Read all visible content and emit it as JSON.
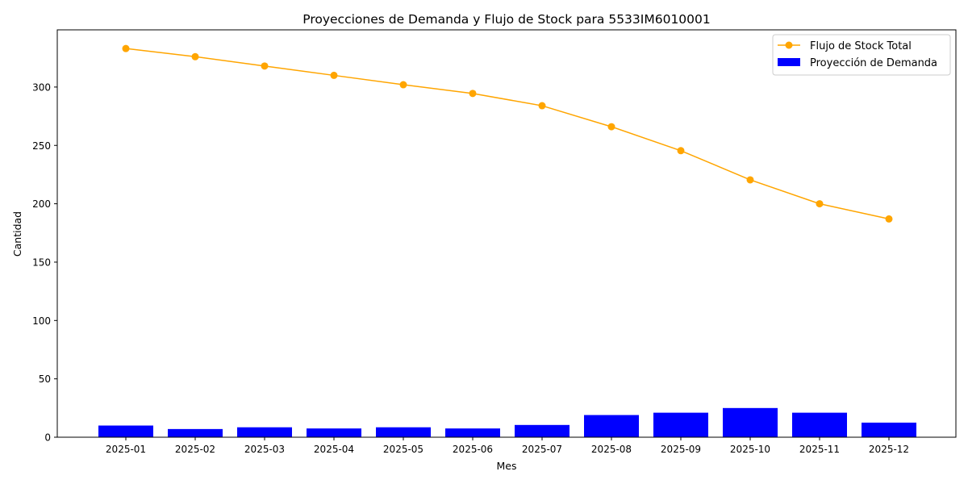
{
  "chart_data": {
    "type": "bar+line",
    "title": "Proyecciones de Demanda y Flujo de Stock para 5533IM6010001",
    "xlabel": "Mes",
    "ylabel": "Cantidad",
    "categories": [
      "2025-01",
      "2025-02",
      "2025-03",
      "2025-04",
      "2025-05",
      "2025-06",
      "2025-07",
      "2025-08",
      "2025-09",
      "2025-10",
      "2025-11",
      "2025-12"
    ],
    "ylim": [
      0,
      349
    ],
    "yticks": [
      0,
      50,
      100,
      150,
      200,
      250,
      300
    ],
    "grid": false,
    "legend_position": "top-right",
    "series": [
      {
        "name": "Flujo de Stock Total",
        "kind": "line",
        "color": "#ffa500",
        "marker": "circle",
        "values": [
          333,
          326,
          318,
          310,
          302,
          294.5,
          284,
          266,
          245.5,
          220.5,
          200,
          187
        ]
      },
      {
        "name": "Proyección de Demanda",
        "kind": "bar",
        "color": "#0000ff",
        "values": [
          10,
          7,
          8.5,
          7.5,
          8.5,
          7.5,
          10.5,
          19,
          21,
          25,
          21,
          12.5
        ]
      }
    ]
  }
}
